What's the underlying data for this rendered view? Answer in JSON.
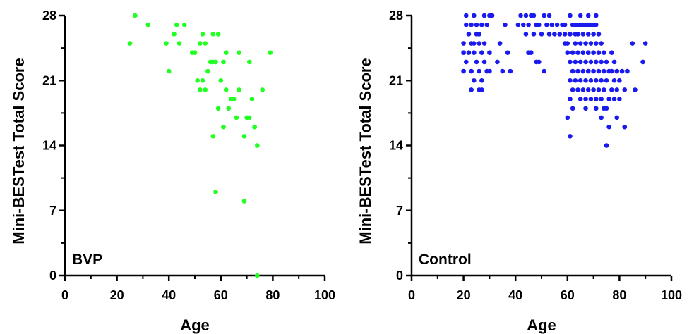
{
  "chart_data": [
    {
      "type": "scatter",
      "panel_label": "BVP",
      "xlabel": "Age",
      "ylabel": "Mini-BESTest Total Score",
      "xlim": [
        0,
        100
      ],
      "ylim": [
        0,
        28
      ],
      "xticks": [
        "0",
        "20",
        "40",
        "60",
        "80",
        "100"
      ],
      "yticks": [
        "0",
        "7",
        "14",
        "21",
        "28"
      ],
      "color": "#22ff22",
      "points": [
        [
          25,
          25
        ],
        [
          27,
          28
        ],
        [
          32,
          27
        ],
        [
          39,
          25
        ],
        [
          40,
          22
        ],
        [
          42,
          26
        ],
        [
          43,
          27
        ],
        [
          44,
          25
        ],
        [
          46,
          27
        ],
        [
          49,
          24
        ],
        [
          50,
          24
        ],
        [
          51,
          21
        ],
        [
          52,
          20
        ],
        [
          52,
          25
        ],
        [
          53,
          26
        ],
        [
          53,
          21
        ],
        [
          54,
          25
        ],
        [
          54,
          20
        ],
        [
          55,
          22
        ],
        [
          56,
          23
        ],
        [
          57,
          15
        ],
        [
          57,
          26
        ],
        [
          57,
          23
        ],
        [
          58,
          9
        ],
        [
          58,
          23
        ],
        [
          59,
          26
        ],
        [
          59,
          18
        ],
        [
          60,
          21
        ],
        [
          61,
          16
        ],
        [
          61,
          23
        ],
        [
          62,
          20
        ],
        [
          62,
          24
        ],
        [
          63,
          18
        ],
        [
          64,
          19
        ],
        [
          65,
          19
        ],
        [
          66,
          17
        ],
        [
          67,
          20
        ],
        [
          67,
          24
        ],
        [
          69,
          8
        ],
        [
          69,
          15
        ],
        [
          70,
          17
        ],
        [
          71,
          17
        ],
        [
          71,
          23
        ],
        [
          72,
          19
        ],
        [
          73,
          16
        ],
        [
          74,
          0
        ],
        [
          74,
          14
        ],
        [
          76,
          20
        ],
        [
          79,
          24
        ]
      ]
    },
    {
      "type": "scatter",
      "panel_label": "Control",
      "xlabel": "Age",
      "ylabel": "Mini-BESTest Total Score",
      "xlim": [
        0,
        100
      ],
      "ylim": [
        0,
        28
      ],
      "xticks": [
        "0",
        "20",
        "40",
        "60",
        "80",
        "100"
      ],
      "yticks": [
        "0",
        "7",
        "14",
        "21",
        "28"
      ],
      "color": "#1a1aee",
      "points": [
        [
          20,
          22
        ],
        [
          20,
          24
        ],
        [
          20,
          25
        ],
        [
          21,
          23
        ],
        [
          21,
          27
        ],
        [
          21,
          28
        ],
        [
          22,
          24
        ],
        [
          22,
          26
        ],
        [
          23,
          20
        ],
        [
          23,
          22
        ],
        [
          23,
          25
        ],
        [
          23,
          27
        ],
        [
          24,
          21
        ],
        [
          24,
          24
        ],
        [
          24,
          25
        ],
        [
          24,
          28
        ],
        [
          25,
          23
        ],
        [
          25,
          26
        ],
        [
          25,
          27
        ],
        [
          26,
          20
        ],
        [
          26,
          22
        ],
        [
          26,
          25
        ],
        [
          26,
          26
        ],
        [
          27,
          20
        ],
        [
          27,
          21
        ],
        [
          27,
          24
        ],
        [
          27,
          27
        ],
        [
          28,
          23
        ],
        [
          28,
          25
        ],
        [
          28,
          28
        ],
        [
          29,
          22
        ],
        [
          29,
          27
        ],
        [
          30,
          22
        ],
        [
          30,
          24
        ],
        [
          30,
          28
        ],
        [
          31,
          28
        ],
        [
          33,
          23
        ],
        [
          34,
          25
        ],
        [
          35,
          22
        ],
        [
          36,
          27
        ],
        [
          37,
          24
        ],
        [
          38,
          22
        ],
        [
          41,
          27
        ],
        [
          42,
          28
        ],
        [
          43,
          27
        ],
        [
          44,
          26
        ],
        [
          44,
          28
        ],
        [
          45,
          24
        ],
        [
          45,
          27
        ],
        [
          46,
          24
        ],
        [
          46,
          28
        ],
        [
          47,
          26
        ],
        [
          47,
          28
        ],
        [
          48,
          23
        ],
        [
          48,
          27
        ],
        [
          49,
          23
        ],
        [
          49,
          27
        ],
        [
          50,
          26
        ],
        [
          51,
          22
        ],
        [
          51,
          28
        ],
        [
          52,
          27
        ],
        [
          53,
          26
        ],
        [
          53,
          28
        ],
        [
          54,
          27
        ],
        [
          55,
          26
        ],
        [
          56,
          27
        ],
        [
          57,
          26
        ],
        [
          58,
          27
        ],
        [
          59,
          25
        ],
        [
          59,
          26
        ],
        [
          59,
          27
        ],
        [
          60,
          17
        ],
        [
          60,
          24
        ],
        [
          60,
          25
        ],
        [
          61,
          15
        ],
        [
          61,
          19
        ],
        [
          61,
          21
        ],
        [
          61,
          23
        ],
        [
          61,
          26
        ],
        [
          61,
          28
        ],
        [
          62,
          18
        ],
        [
          62,
          20
        ],
        [
          62,
          22
        ],
        [
          62,
          24
        ],
        [
          62,
          27
        ],
        [
          63,
          21
        ],
        [
          63,
          23
        ],
        [
          63,
          25
        ],
        [
          63,
          26
        ],
        [
          63,
          27
        ],
        [
          64,
          20
        ],
        [
          64,
          22
        ],
        [
          64,
          24
        ],
        [
          64,
          26
        ],
        [
          64,
          27
        ],
        [
          65,
          19
        ],
        [
          65,
          21
        ],
        [
          65,
          23
        ],
        [
          65,
          25
        ],
        [
          65,
          27
        ],
        [
          65,
          28
        ],
        [
          66,
          20
        ],
        [
          66,
          22
        ],
        [
          66,
          24
        ],
        [
          66,
          26
        ],
        [
          66,
          27
        ],
        [
          67,
          18
        ],
        [
          67,
          19
        ],
        [
          67,
          21
        ],
        [
          67,
          23
        ],
        [
          67,
          25
        ],
        [
          67,
          27
        ],
        [
          68,
          20
        ],
        [
          68,
          22
        ],
        [
          68,
          24
        ],
        [
          68,
          26
        ],
        [
          68,
          27
        ],
        [
          68,
          28
        ],
        [
          69,
          19
        ],
        [
          69,
          21
        ],
        [
          69,
          23
        ],
        [
          69,
          25
        ],
        [
          69,
          27
        ],
        [
          70,
          20
        ],
        [
          70,
          22
        ],
        [
          70,
          24
        ],
        [
          70,
          26
        ],
        [
          70,
          27
        ],
        [
          71,
          18
        ],
        [
          71,
          19
        ],
        [
          71,
          21
        ],
        [
          71,
          23
        ],
        [
          71,
          25
        ],
        [
          71,
          27
        ],
        [
          71,
          28
        ],
        [
          72,
          20
        ],
        [
          72,
          22
        ],
        [
          72,
          24
        ],
        [
          72,
          26
        ],
        [
          73,
          17
        ],
        [
          73,
          19
        ],
        [
          73,
          21
        ],
        [
          73,
          23
        ],
        [
          73,
          25
        ],
        [
          74,
          18
        ],
        [
          74,
          20
        ],
        [
          74,
          22
        ],
        [
          74,
          24
        ],
        [
          75,
          14
        ],
        [
          75,
          18
        ],
        [
          75,
          21
        ],
        [
          75,
          23
        ],
        [
          76,
          16
        ],
        [
          76,
          19
        ],
        [
          76,
          22
        ],
        [
          77,
          20
        ],
        [
          77,
          22
        ],
        [
          77,
          24
        ],
        [
          78,
          19
        ],
        [
          78,
          21
        ],
        [
          78,
          23
        ],
        [
          79,
          17
        ],
        [
          79,
          20
        ],
        [
          79,
          22
        ],
        [
          80,
          19
        ],
        [
          80,
          21
        ],
        [
          81,
          22
        ],
        [
          82,
          16
        ],
        [
          82,
          20
        ],
        [
          83,
          22
        ],
        [
          85,
          25
        ],
        [
          86,
          20
        ],
        [
          89,
          23
        ],
        [
          90,
          25
        ]
      ]
    }
  ]
}
